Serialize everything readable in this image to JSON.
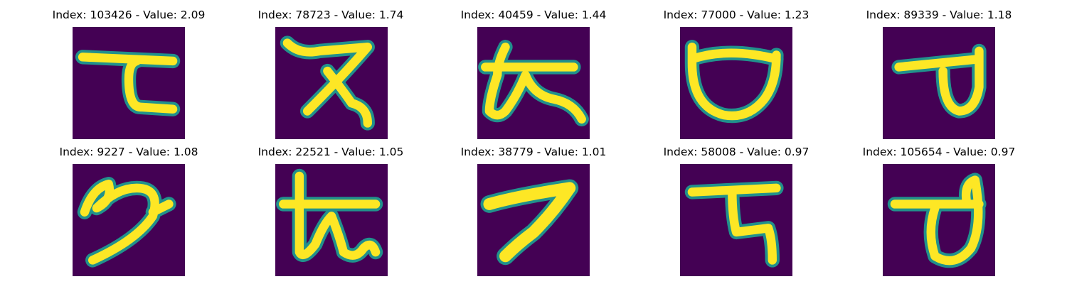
{
  "glyph_colors": {
    "background": "#440154",
    "edge": "#21918c",
    "mid": "#5ec962",
    "stroke": "#fde725"
  },
  "panels": [
    {
      "title": "Index: 103426 - Value: 2.09",
      "glyph": "glyph-ta-icon"
    },
    {
      "title": "Index: 78723 - Value: 1.74",
      "glyph": "glyph-za-icon"
    },
    {
      "title": "Index: 40459 - Value: 1.44",
      "glyph": "glyph-ka-loop-icon"
    },
    {
      "title": "Index: 77000 - Value: 1.23",
      "glyph": "glyph-bowl-icon"
    },
    {
      "title": "Index: 89339 - Value: 1.18",
      "glyph": "glyph-va-icon"
    },
    {
      "title": "Index: 9227 - Value: 1.08",
      "glyph": "glyph-swirl-icon"
    },
    {
      "title": "Index: 22521 - Value: 1.05",
      "glyph": "glyph-ka-icon"
    },
    {
      "title": "Index: 38779 - Value: 1.01",
      "glyph": "glyph-stroke-icon"
    },
    {
      "title": "Index: 58008 - Value: 0.97",
      "glyph": "glyph-ra-icon"
    },
    {
      "title": "Index: 105654 - Value: 0.97",
      "glyph": "glyph-va-tall-icon"
    }
  ]
}
